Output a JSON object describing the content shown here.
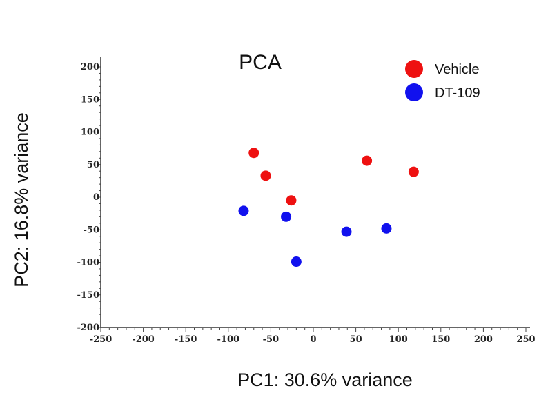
{
  "chart_data": {
    "type": "scatter",
    "title": "PCA",
    "xlabel": "PC1: 30.6% variance",
    "ylabel": "PC2: 16.8% variance",
    "xlim": [
      -250,
      250
    ],
    "ylim": [
      -200,
      200
    ],
    "x_ticks": [
      -250,
      -200,
      -150,
      -100,
      -50,
      0,
      50,
      100,
      150,
      200,
      250
    ],
    "y_ticks": [
      200,
      150,
      100,
      50,
      0,
      -50,
      -100,
      -150,
      -200
    ],
    "x_tick_labels": [
      "-250",
      "-200",
      "-150",
      "-100",
      "-50",
      "0",
      "50",
      "100",
      "150",
      "200",
      "250"
    ],
    "y_tick_labels": [
      "200",
      "150",
      "100",
      "50",
      "0",
      "-50",
      "-100",
      "-150",
      "-200"
    ],
    "grid": false,
    "legend_position": "top-right",
    "series": [
      {
        "name": "Vehicle",
        "color": "#ee1111",
        "points": [
          {
            "x": -70,
            "y": 68
          },
          {
            "x": -56,
            "y": 33
          },
          {
            "x": -26,
            "y": -5
          },
          {
            "x": 63,
            "y": 56
          },
          {
            "x": 118,
            "y": 39
          }
        ]
      },
      {
        "name": "DT-109",
        "color": "#1111ee",
        "points": [
          {
            "x": -82,
            "y": -21
          },
          {
            "x": -32,
            "y": -30
          },
          {
            "x": -20,
            "y": -99
          },
          {
            "x": 39,
            "y": -53
          },
          {
            "x": 86,
            "y": -48
          }
        ]
      }
    ]
  }
}
